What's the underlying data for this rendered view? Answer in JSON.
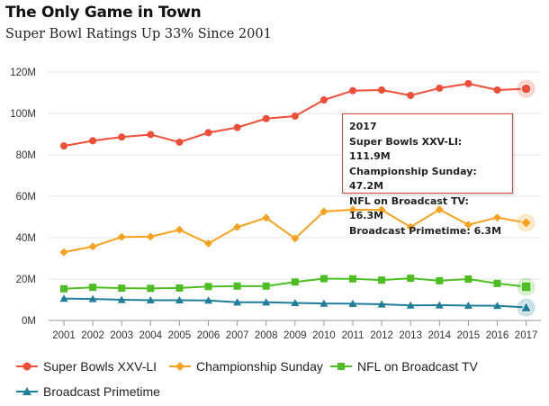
{
  "header": {
    "title": "The Only Game in Town",
    "subtitle": "Super Bowl Ratings Up 33% Since 2001"
  },
  "tooltip": {
    "year": "2017",
    "lines": [
      "Super Bowls XXV-LI: 111.9M",
      "Championship Sunday: 47.2M",
      "NFL on Broadcast TV: 16.3M",
      "Broadcast Primetime: 6.3M"
    ]
  },
  "chart_data": {
    "type": "line",
    "title": "The Only Game in Town",
    "subtitle": "Super Bowl Ratings Up 33% Since 2001",
    "xlabel": "",
    "ylabel": "",
    "x": [
      "2001",
      "2002",
      "2003",
      "2004",
      "2005",
      "2006",
      "2007",
      "2008",
      "2009",
      "2010",
      "2011",
      "2012",
      "2013",
      "2014",
      "2015",
      "2016",
      "2017"
    ],
    "ylim": [
      0,
      120
    ],
    "yticks": [
      0,
      20,
      40,
      60,
      80,
      100,
      120
    ],
    "ytick_labels": [
      "0M",
      "20M",
      "40M",
      "60M",
      "80M",
      "100M",
      "120M"
    ],
    "grid": "horizontal",
    "legend_position": "bottom",
    "highlighted_x": "2017",
    "series": [
      {
        "name": "Super Bowls XXV-LI",
        "color": "#f04e37",
        "marker": "circle",
        "values": [
          84.3,
          86.8,
          88.6,
          89.8,
          86.1,
          90.7,
          93.2,
          97.5,
          98.7,
          106.5,
          111.0,
          111.3,
          108.7,
          112.2,
          114.4,
          111.3,
          111.9
        ]
      },
      {
        "name": "Championship Sunday",
        "color": "#f9a11b",
        "marker": "diamond",
        "values": [
          33.0,
          35.7,
          40.3,
          40.5,
          43.8,
          37.2,
          45.1,
          49.6,
          39.6,
          52.6,
          53.5,
          53.4,
          45.1,
          53.6,
          46.2,
          49.7,
          47.2
        ]
      },
      {
        "name": "NFL on Broadcast TV",
        "color": "#4cbe22",
        "marker": "square",
        "values": [
          15.3,
          16.0,
          15.6,
          15.5,
          15.7,
          16.4,
          16.6,
          16.6,
          18.6,
          20.2,
          20.1,
          19.5,
          20.4,
          19.2,
          20.0,
          17.9,
          16.3
        ]
      },
      {
        "name": "Broadcast Primetime",
        "color": "#1f7e9b",
        "marker": "triangle",
        "values": [
          10.6,
          10.4,
          10.0,
          9.8,
          9.8,
          9.7,
          8.8,
          8.8,
          8.5,
          8.2,
          8.1,
          7.8,
          7.3,
          7.4,
          7.2,
          7.1,
          6.3
        ]
      }
    ]
  }
}
